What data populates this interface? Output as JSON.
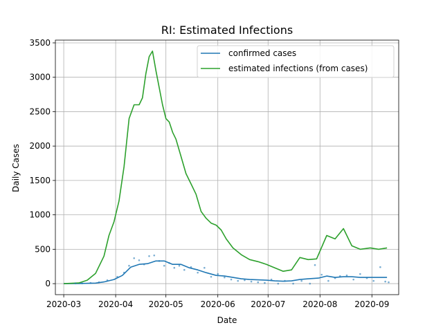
{
  "chart_data": {
    "type": "line",
    "title": "RI: Estimated Infections",
    "xlabel": "Date",
    "ylabel": "Daily Cases",
    "xlim": [
      "2020-02-25",
      "2020-09-17"
    ],
    "ylim": [
      -160,
      3540
    ],
    "x_ticks": [
      "2020-03",
      "2020-04",
      "2020-05",
      "2020-06",
      "2020-07",
      "2020-08",
      "2020-09"
    ],
    "y_ticks": [
      0,
      500,
      1000,
      1500,
      2000,
      2500,
      3000,
      3500
    ],
    "grid": true,
    "legend_position": "top-right",
    "series": [
      {
        "name": "confirmed cases",
        "color": "#1f77b4",
        "style": "line",
        "x": [
          "2020-03-01",
          "2020-03-10",
          "2020-03-20",
          "2020-03-25",
          "2020-03-31",
          "2020-04-05",
          "2020-04-10",
          "2020-04-15",
          "2020-04-20",
          "2020-04-25",
          "2020-04-30",
          "2020-05-05",
          "2020-05-10",
          "2020-05-15",
          "2020-05-20",
          "2020-05-25",
          "2020-05-31",
          "2020-06-05",
          "2020-06-10",
          "2020-06-15",
          "2020-06-20",
          "2020-06-25",
          "2020-06-30",
          "2020-07-05",
          "2020-07-10",
          "2020-07-15",
          "2020-07-20",
          "2020-07-25",
          "2020-07-31",
          "2020-08-05",
          "2020-08-10",
          "2020-08-15",
          "2020-08-20",
          "2020-08-25",
          "2020-08-31",
          "2020-09-05",
          "2020-09-10"
        ],
        "y": [
          0,
          2,
          8,
          25,
          60,
          120,
          240,
          280,
          290,
          330,
          330,
          280,
          280,
          230,
          200,
          160,
          120,
          110,
          90,
          70,
          60,
          55,
          50,
          40,
          35,
          40,
          60,
          70,
          80,
          110,
          90,
          100,
          100,
          90,
          90,
          90,
          90
        ]
      },
      {
        "name": "estimated infections (from cases)",
        "color": "#2ca02c",
        "style": "line",
        "x": [
          "2020-03-01",
          "2020-03-10",
          "2020-03-15",
          "2020-03-20",
          "2020-03-25",
          "2020-03-28",
          "2020-03-31",
          "2020-04-03",
          "2020-04-06",
          "2020-04-09",
          "2020-04-12",
          "2020-04-15",
          "2020-04-17",
          "2020-04-19",
          "2020-04-21",
          "2020-04-23",
          "2020-04-25",
          "2020-04-27",
          "2020-04-29",
          "2020-05-01",
          "2020-05-03",
          "2020-05-05",
          "2020-05-07",
          "2020-05-10",
          "2020-05-13",
          "2020-05-16",
          "2020-05-19",
          "2020-05-22",
          "2020-05-25",
          "2020-05-28",
          "2020-05-31",
          "2020-06-03",
          "2020-06-06",
          "2020-06-10",
          "2020-06-15",
          "2020-06-20",
          "2020-06-25",
          "2020-06-30",
          "2020-07-05",
          "2020-07-10",
          "2020-07-15",
          "2020-07-20",
          "2020-07-25",
          "2020-07-30",
          "2020-08-05",
          "2020-08-10",
          "2020-08-15",
          "2020-08-20",
          "2020-08-25",
          "2020-08-31",
          "2020-09-05",
          "2020-09-10"
        ],
        "y": [
          0,
          10,
          50,
          150,
          400,
          700,
          900,
          1200,
          1700,
          2400,
          2600,
          2600,
          2700,
          3050,
          3300,
          3380,
          3100,
          2850,
          2600,
          2400,
          2350,
          2200,
          2100,
          1850,
          1600,
          1450,
          1300,
          1050,
          950,
          880,
          850,
          780,
          650,
          520,
          420,
          350,
          320,
          280,
          230,
          180,
          200,
          380,
          350,
          360,
          700,
          650,
          800,
          550,
          500,
          520,
          500,
          520
        ]
      },
      {
        "name": "",
        "color": "#1f77b4",
        "style": "scatter",
        "x": [
          "2020-03-08",
          "2020-03-12",
          "2020-03-17",
          "2020-03-22",
          "2020-03-27",
          "2020-04-02",
          "2020-04-06",
          "2020-04-09",
          "2020-04-12",
          "2020-04-15",
          "2020-04-18",
          "2020-04-21",
          "2020-04-24",
          "2020-04-27",
          "2020-04-30",
          "2020-05-03",
          "2020-05-06",
          "2020-05-09",
          "2020-05-12",
          "2020-05-16",
          "2020-05-20",
          "2020-05-24",
          "2020-05-28",
          "2020-06-01",
          "2020-06-05",
          "2020-06-09",
          "2020-06-13",
          "2020-06-17",
          "2020-06-21",
          "2020-06-25",
          "2020-06-29",
          "2020-07-03",
          "2020-07-07",
          "2020-07-11",
          "2020-07-16",
          "2020-07-21",
          "2020-07-26",
          "2020-07-29",
          "2020-08-02",
          "2020-08-06",
          "2020-08-10",
          "2020-08-13",
          "2020-08-17",
          "2020-08-21",
          "2020-08-25",
          "2020-08-29",
          "2020-09-02",
          "2020-09-06",
          "2020-09-09",
          "2020-09-11"
        ],
        "y": [
          5,
          5,
          10,
          20,
          50,
          100,
          160,
          260,
          370,
          340,
          280,
          400,
          410,
          330,
          260,
          300,
          230,
          260,
          200,
          240,
          160,
          230,
          100,
          140,
          90,
          60,
          40,
          50,
          30,
          20,
          10,
          60,
          0,
          40,
          0,
          40,
          0,
          270,
          130,
          40,
          80,
          110,
          120,
          60,
          140,
          80,
          40,
          240,
          30,
          20
        ]
      }
    ]
  }
}
